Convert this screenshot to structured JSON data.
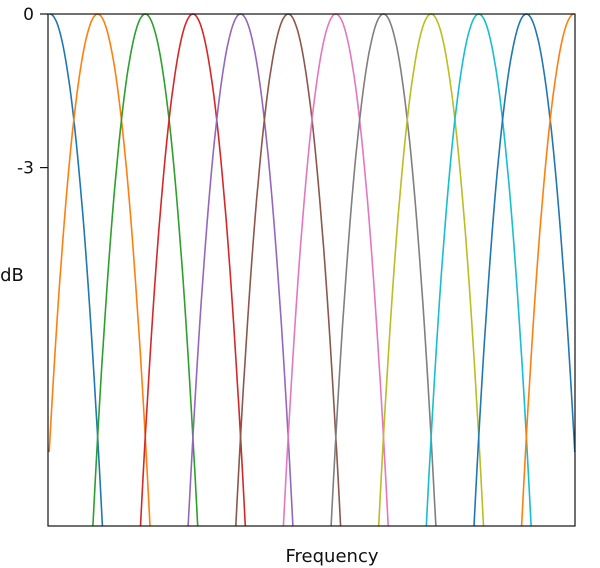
{
  "chart_data": {
    "type": "line",
    "title": "",
    "xlabel": "Frequency",
    "ylabel": "dB",
    "ylim": [
      -10,
      0
    ],
    "yticks": [
      {
        "value": 0,
        "label": "0"
      },
      {
        "value": -3,
        "label": "-3"
      }
    ],
    "grid": false,
    "legend": "none",
    "band_centers": [
      0,
      1,
      2,
      3,
      4,
      5,
      6,
      7,
      8,
      9,
      10,
      11
    ],
    "band_halfwidth_at_floor": 1.1,
    "series": [
      {
        "center": 0,
        "peak_db": 0,
        "color": "#1f77b4"
      },
      {
        "center": 1,
        "peak_db": 0,
        "color": "#ff7f0e"
      },
      {
        "center": 2,
        "peak_db": 0,
        "color": "#2ca02c"
      },
      {
        "center": 3,
        "peak_db": 0,
        "color": "#d62728"
      },
      {
        "center": 4,
        "peak_db": 0,
        "color": "#9467bd"
      },
      {
        "center": 5,
        "peak_db": 0,
        "color": "#8c564b"
      },
      {
        "center": 6,
        "peak_db": 0,
        "color": "#e377c2"
      },
      {
        "center": 7,
        "peak_db": 0,
        "color": "#7f7f7f"
      },
      {
        "center": 8,
        "peak_db": 0,
        "color": "#bcbd22"
      },
      {
        "center": 9,
        "peak_db": 0,
        "color": "#17becf"
      },
      {
        "center": 10,
        "peak_db": 0,
        "color": "#1f77b4"
      },
      {
        "center": 11,
        "peak_db": 0,
        "color": "#ff7f0e"
      }
    ]
  }
}
